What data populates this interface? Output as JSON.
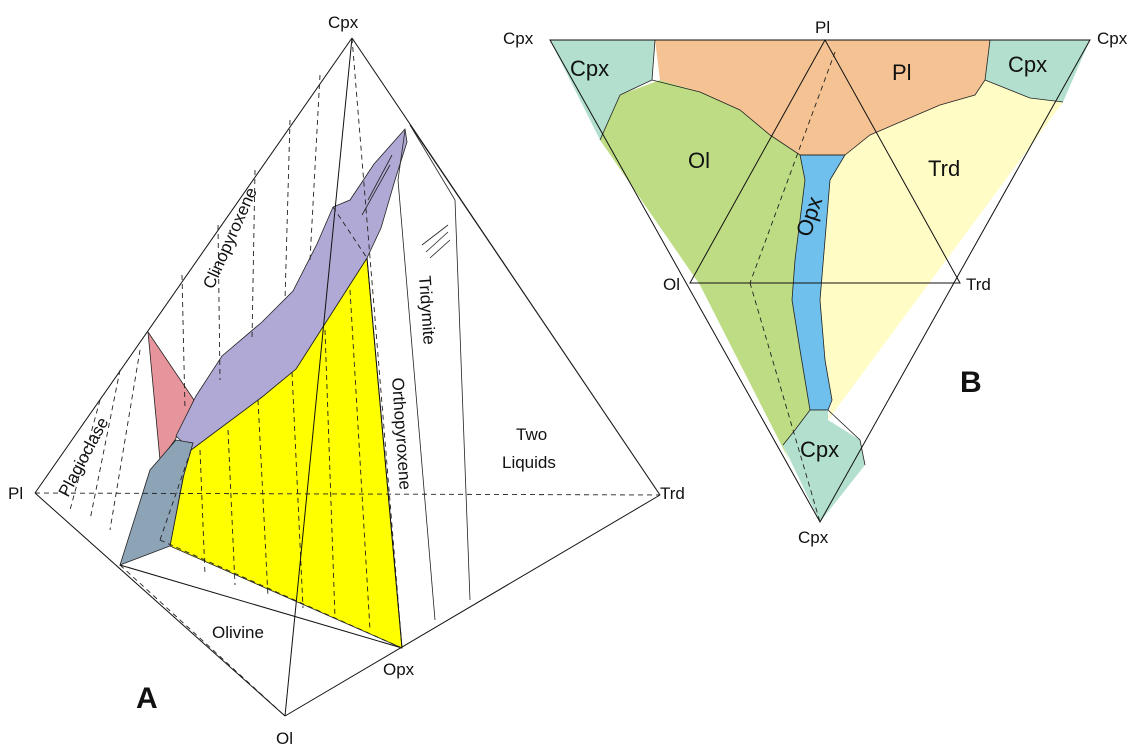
{
  "panel_a": {
    "panel_label": "A",
    "vertices": {
      "cpx": "Cpx",
      "pl": "Pl",
      "trd": "Trd",
      "ol": "Ol",
      "opx": "Opx"
    },
    "fields": {
      "clinopyroxene": "Clinopyroxene",
      "plagioclase": "Plagioclase",
      "orthopyroxene": "Orthopyroxene",
      "tridymite": "Tridymite",
      "two_liquids_line1": "Two",
      "two_liquids_line2": "Liquids",
      "olivine": "Olivine"
    },
    "colors": {
      "clinopyroxene_surface": "#b1a9d5",
      "plagioclase_surface": "#e6959c",
      "steel_surface": "#8da3b6",
      "orthopyroxene_plane": "#ffff00"
    }
  },
  "panel_b": {
    "panel_label": "B",
    "vertices": {
      "cpx_top_left": "Cpx",
      "pl_top": "Pl",
      "cpx_top_right": "Cpx",
      "ol_left": "Ol",
      "trd_right": "Trd",
      "cpx_bottom": "Cpx"
    },
    "fields": {
      "cpx_left": "Cpx",
      "pl": "Pl",
      "cpx_right": "Cpx",
      "ol": "Ol",
      "opx": "Opx",
      "trd": "Trd",
      "cpx_bottom": "Cpx"
    },
    "colors": {
      "cpx": "#b3dfce",
      "pl": "#f5c393",
      "ol": "#bedc84",
      "opx": "#6fc0ec",
      "trd": "#fffcc6"
    }
  }
}
